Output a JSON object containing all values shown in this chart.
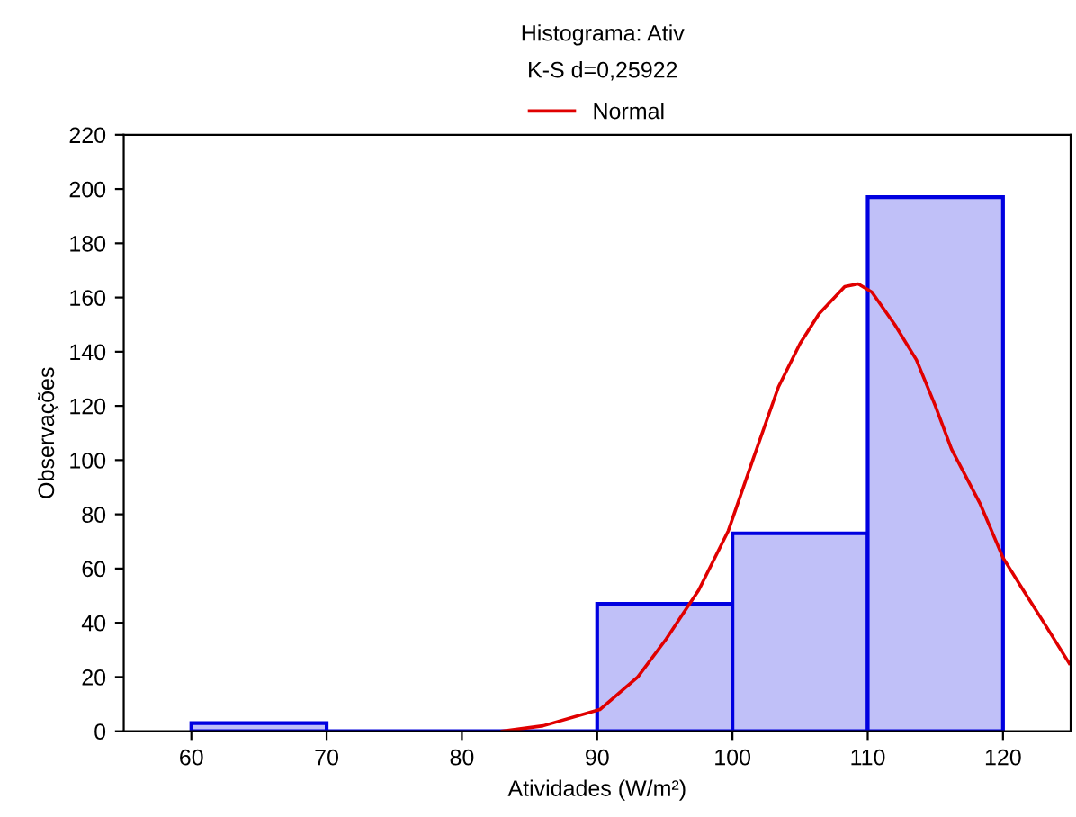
{
  "chart_data": {
    "type": "histogram",
    "title": "Histograma: Ativ",
    "subtitle": "K-S d=0,25922",
    "xlabel": "Atividades (W/m²)",
    "ylabel": "Observações",
    "xlim": [
      55,
      125
    ],
    "xticks": [
      60,
      70,
      80,
      90,
      100,
      110,
      120
    ],
    "ylim": [
      0,
      220
    ],
    "yticks": [
      0,
      20,
      40,
      60,
      80,
      100,
      120,
      140,
      160,
      180,
      200,
      220
    ],
    "grid": false,
    "legend": "top",
    "series": [
      {
        "color": "#c0c0f8",
        "bins": [
          60,
          70,
          80,
          90,
          100,
          110,
          120
        ],
        "values": [
          3,
          0,
          0,
          47,
          73,
          197
        ]
      },
      {
        "type": "line",
        "name": "Normal",
        "color": "#e00000",
        "x": [
          83,
          86,
          90.2,
          93,
          95.1,
          97.5,
          99.7,
          101.5,
          103.4,
          105,
          106.4,
          108.3,
          109.3,
          110.3,
          112,
          113.6,
          115,
          116.2,
          118.3,
          120,
          121.5,
          122.9,
          124.9
        ],
        "values": [
          0,
          2,
          8,
          20,
          34,
          52,
          74,
          100,
          127,
          143,
          154,
          164,
          165,
          162,
          150,
          137,
          120,
          104,
          84,
          64,
          52,
          41,
          25
        ]
      }
    ]
  }
}
